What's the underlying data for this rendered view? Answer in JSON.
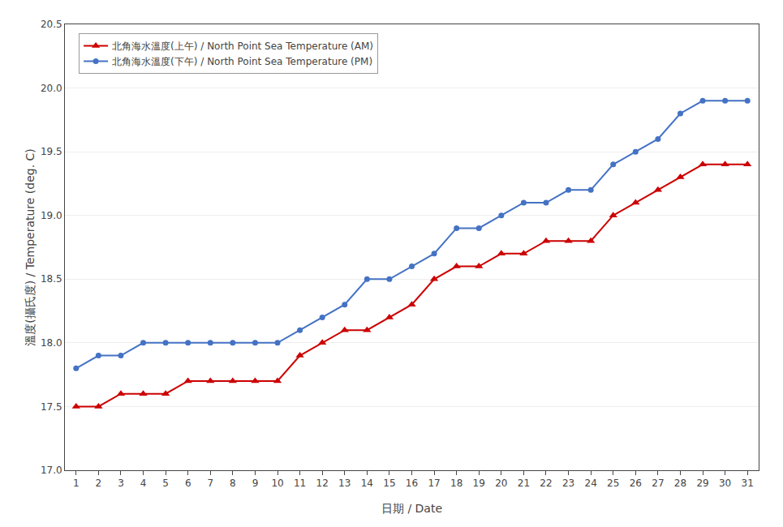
{
  "chart_data": {
    "type": "line",
    "x": [
      1,
      2,
      3,
      4,
      5,
      6,
      7,
      8,
      9,
      10,
      11,
      12,
      13,
      14,
      15,
      16,
      17,
      18,
      19,
      20,
      21,
      22,
      23,
      24,
      25,
      26,
      27,
      28,
      29,
      30,
      31
    ],
    "series": [
      {
        "name": "北角海水溫度(上午) / North Point Sea Temperature (AM)",
        "color": "#cc0000",
        "marker": "triangle-up",
        "values": [
          17.5,
          17.5,
          17.6,
          17.6,
          17.6,
          17.7,
          17.7,
          17.7,
          17.7,
          17.7,
          17.9,
          18.0,
          18.1,
          18.1,
          18.2,
          18.3,
          18.5,
          18.6,
          18.6,
          18.7,
          18.7,
          18.8,
          18.8,
          18.8,
          19.0,
          19.1,
          19.2,
          19.3,
          19.4,
          19.4,
          19.4
        ]
      },
      {
        "name": "北角海水溫度(下午) / North Point Sea Temperature (PM)",
        "color": "#4472c4",
        "marker": "circle",
        "values": [
          17.8,
          17.9,
          17.9,
          18.0,
          18.0,
          18.0,
          18.0,
          18.0,
          18.0,
          18.0,
          18.1,
          18.2,
          18.3,
          18.5,
          18.5,
          18.6,
          18.7,
          18.9,
          18.9,
          19.0,
          19.1,
          19.1,
          19.2,
          19.2,
          19.4,
          19.5,
          19.6,
          19.8,
          19.9,
          19.9,
          19.9
        ]
      }
    ],
    "xlabel": "日期 / Date",
    "ylabel": "溫度(攝氏度) / Temperature (deg. C)",
    "xlim": [
      0.5,
      31.5
    ],
    "xticks": [
      1,
      2,
      3,
      4,
      5,
      6,
      7,
      8,
      9,
      10,
      11,
      12,
      13,
      14,
      15,
      16,
      17,
      18,
      19,
      20,
      21,
      22,
      23,
      24,
      25,
      26,
      27,
      28,
      29,
      30,
      31
    ],
    "ylim": [
      17.0,
      20.5
    ],
    "yticks": [
      {
        "value": 17.0,
        "label": "17.0"
      },
      17.5,
      {
        "value": 18.0,
        "label": "18.0"
      },
      18.5,
      {
        "value": 19.0,
        "label": "19.0"
      },
      19.5,
      {
        "value": 20.0,
        "label": "20.0"
      },
      20.5
    ],
    "grid": "y",
    "legend": "upper left"
  }
}
